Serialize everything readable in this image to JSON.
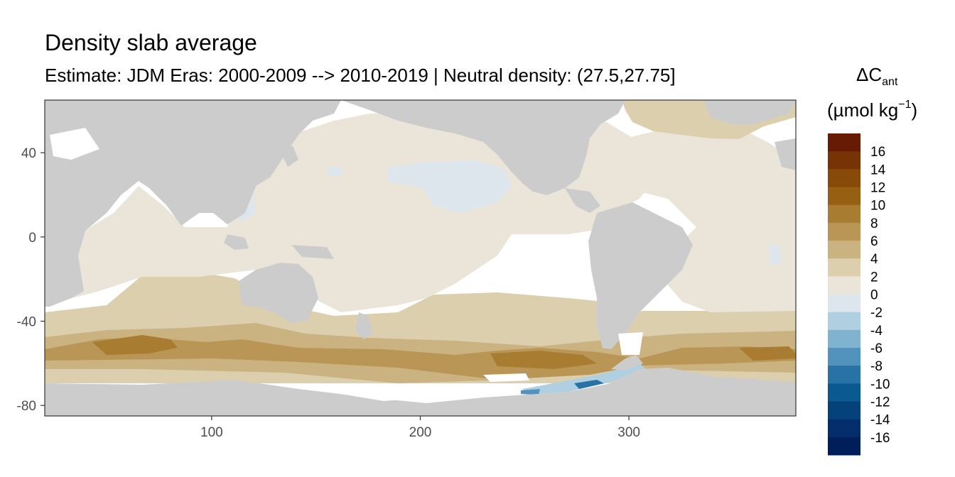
{
  "title": "Density slab average",
  "subtitle": "Estimate: JDM Eras: 2000-2009 --> 2010-2019 | Neutral density: (27.5,27.75]",
  "chart_data": {
    "type": "heatmap",
    "title": "Density slab average",
    "subtitle": "Estimate: JDM Eras: 2000-2009 --> 2010-2019 | Neutral density: (27.5,27.75]",
    "xlabel": "",
    "ylabel": "",
    "xlim": [
      20,
      380
    ],
    "ylim": [
      -85,
      65
    ],
    "x_ticks": [
      100,
      200,
      300
    ],
    "y_ticks": [
      40,
      0,
      -40,
      -80
    ],
    "grid": false,
    "legend": {
      "position": "right",
      "title_symbol": "ΔC",
      "title_subscript": "ant",
      "title_unit": "(µmol kg",
      "title_unit_sup": "−1",
      "title_unit_close": ")",
      "bins": [
        {
          "upper": 18,
          "lower": 16,
          "color": "#671a04"
        },
        {
          "upper": 16,
          "lower": 14,
          "color": "#773306"
        },
        {
          "upper": 14,
          "lower": 12,
          "color": "#874a09"
        },
        {
          "upper": 12,
          "lower": 10,
          "color": "#965f12"
        },
        {
          "upper": 10,
          "lower": 8,
          "color": "#a87c31"
        },
        {
          "upper": 8,
          "lower": 6,
          "color": "#b99655"
        },
        {
          "upper": 6,
          "lower": 4,
          "color": "#cab281"
        },
        {
          "upper": 4,
          "lower": 2,
          "color": "#dccfad"
        },
        {
          "upper": 2,
          "lower": 0,
          "color": "#ebe5d9"
        },
        {
          "upper": 0,
          "lower": -2,
          "color": "#dce6ec"
        },
        {
          "upper": -2,
          "lower": -4,
          "color": "#b0cfe0"
        },
        {
          "upper": -4,
          "lower": -6,
          "color": "#80b3d0"
        },
        {
          "upper": -6,
          "lower": -8,
          "color": "#5293bd"
        },
        {
          "upper": -8,
          "lower": -10,
          "color": "#2873a6"
        },
        {
          "upper": -10,
          "lower": -12,
          "color": "#0a5a91"
        },
        {
          "upper": -12,
          "lower": -14,
          "color": "#05427c"
        },
        {
          "upper": -14,
          "lower": -16,
          "color": "#032e6b"
        },
        {
          "upper": -16,
          "lower": -18,
          "color": "#001e5a"
        }
      ],
      "labels": [
        "16",
        "14",
        "12",
        "10",
        "8",
        "6",
        "4",
        "2",
        "0",
        "-2",
        "-4",
        "-6",
        "-8",
        "-10",
        "-12",
        "-14",
        "-16"
      ]
    },
    "colors": {
      "land": "#cccccc",
      "no_data": "#ffffff"
    },
    "regions": [
      {
        "band": "Pacific / Atlantic / Indian interior, 30S-60N",
        "value_range": [
          0,
          2
        ]
      },
      {
        "band": "North Pacific subtropical patch, ~180-240E 20-35N",
        "value_range": [
          -2,
          0
        ]
      },
      {
        "band": "Southern subtropics, ~30-50S",
        "value_range": [
          2,
          4
        ]
      },
      {
        "band": "Antarctic Circumpolar, ~50-65S",
        "value_range": [
          4,
          6
        ]
      },
      {
        "band": "South Pacific sector near 60-70S",
        "value_range": [
          6,
          8
        ]
      },
      {
        "band": "Indian sector near 55S",
        "value_range": [
          8,
          10
        ]
      },
      {
        "band": "Amundsen / Bellingshausen shelf, ~250-290E 70-75S",
        "value_range": [
          -10,
          -2
        ]
      },
      {
        "band": "Subpolar North Atlantic, ~300-340E 55-65N",
        "value_range": [
          2,
          4
        ]
      }
    ]
  }
}
